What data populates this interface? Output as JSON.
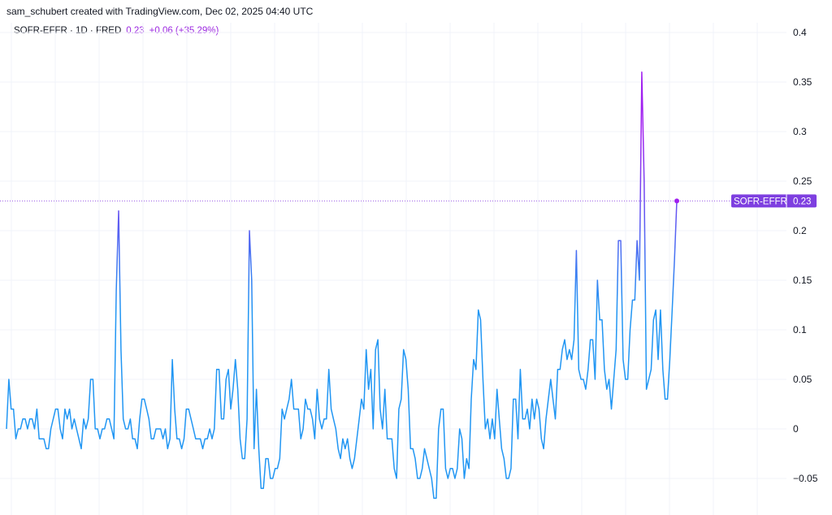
{
  "header": {
    "attribution": "sam_schubert created with TradingView.com, Dec 02, 2025 04:40 UTC"
  },
  "legend": {
    "symbol": "SOFR-EFFR · 1D · FRED",
    "last_value": "0.23",
    "change": "+0.06 (+35.29%)"
  },
  "price_tag": {
    "name": "SOFR-EFFR",
    "value": "0.23"
  },
  "colors": {
    "line_low": "#2196f3",
    "line_high": "#a020f0",
    "tag_bg": "#7e3fe0",
    "grid": "#f0f3fa",
    "dotted_line": "#9c5ce6"
  },
  "chart_data": {
    "type": "line",
    "title": "",
    "series": [
      {
        "name": "SOFR-EFFR",
        "values": [
          0,
          0.05,
          0.02,
          0.02,
          -0.01,
          0,
          0,
          0.01,
          0.01,
          0,
          0.01,
          0.01,
          0,
          0.02,
          -0.01,
          -0.01,
          -0.01,
          -0.02,
          -0.02,
          0,
          0.01,
          0.02,
          0.02,
          0,
          -0.01,
          0.02,
          0.01,
          0.02,
          0,
          0.01,
          0,
          -0.01,
          -0.02,
          0.01,
          0,
          0.01,
          0.05,
          0.05,
          0,
          0,
          -0.01,
          0,
          0,
          0.01,
          0.01,
          0,
          -0.01,
          0.14,
          0.22,
          0.08,
          0.01,
          0,
          0,
          0.01,
          -0.01,
          -0.01,
          -0.02,
          0.01,
          0.03,
          0.03,
          0.02,
          0.01,
          -0.01,
          -0.01,
          0,
          0,
          0,
          -0.01,
          0,
          -0.02,
          -0.01,
          0.07,
          0.02,
          -0.01,
          -0.01,
          -0.02,
          -0.01,
          0.02,
          0.02,
          0.01,
          0,
          -0.01,
          -0.01,
          -0.01,
          -0.02,
          -0.01,
          -0.01,
          0,
          -0.01,
          0,
          0.06,
          0.06,
          0.01,
          0.01,
          0.05,
          0.06,
          0.02,
          0.04,
          0.07,
          0.04,
          -0.01,
          -0.03,
          -0.03,
          0.01,
          0.2,
          0.15,
          -0.02,
          0.04,
          -0.02,
          -0.06,
          -0.06,
          -0.03,
          -0.03,
          -0.05,
          -0.05,
          -0.04,
          -0.04,
          -0.03,
          0.02,
          0.01,
          0.02,
          0.03,
          0.05,
          0.02,
          0.02,
          0.02,
          -0.01,
          0,
          0.03,
          0.02,
          0.02,
          0.01,
          -0.01,
          0.04,
          0.01,
          0,
          0.01,
          0.01,
          0.06,
          0.02,
          0.01,
          0,
          -0.02,
          -0.03,
          -0.01,
          -0.02,
          -0.01,
          -0.03,
          -0.04,
          -0.03,
          -0.01,
          0.01,
          0.03,
          0.02,
          0.08,
          0.04,
          0.06,
          0,
          0.08,
          0.09,
          0.02,
          0,
          0.04,
          -0.01,
          -0.01,
          -0.01,
          -0.04,
          -0.05,
          0.02,
          0.03,
          0.08,
          0.07,
          0.04,
          -0.02,
          -0.02,
          -0.03,
          -0.05,
          -0.05,
          -0.04,
          -0.02,
          -0.03,
          -0.04,
          -0.05,
          -0.07,
          -0.07,
          0,
          0.02,
          0.02,
          -0.04,
          -0.05,
          -0.04,
          -0.04,
          -0.05,
          -0.04,
          0,
          -0.01,
          -0.05,
          -0.03,
          -0.04,
          0.03,
          0.07,
          0.06,
          0.12,
          0.11,
          0.05,
          0,
          0.01,
          -0.01,
          0.01,
          -0.01,
          0.04,
          0.01,
          -0.02,
          -0.03,
          -0.05,
          -0.05,
          -0.04,
          0.03,
          0.03,
          -0.01,
          0.06,
          0.01,
          0.01,
          0.02,
          0,
          0.03,
          0.01,
          0.03,
          0.02,
          -0.01,
          -0.02,
          0.01,
          0.03,
          0.05,
          0.03,
          0.01,
          0.06,
          0.06,
          0.08,
          0.09,
          0.07,
          0.08,
          0.07,
          0.09,
          0.18,
          0.06,
          0.05,
          0.05,
          0.04,
          0.06,
          0.09,
          0.09,
          0.05,
          0.15,
          0.11,
          0.11,
          0.06,
          0.04,
          0.05,
          0.02,
          0.05,
          0.08,
          0.19,
          0.19,
          0.07,
          0.05,
          0.05,
          0.1,
          0.13,
          0.13,
          0.19,
          0.15,
          0.36,
          0.25,
          0.04,
          0.05,
          0.06,
          0.11,
          0.12,
          0.07,
          0.12,
          0.06,
          0.03,
          0.03,
          0.07,
          0.12,
          0.17,
          0.23
        ]
      }
    ],
    "ylim": [
      -0.085,
      0.41
    ],
    "yticks": [
      -0.05,
      0,
      0.05,
      0.1,
      0.15,
      0.2,
      0.25,
      0.3,
      0.35,
      0.4
    ],
    "ytick_labels": [
      "−0.05",
      "0",
      "0.05",
      "0.1",
      "0.15",
      "0.2",
      "0.25",
      "0.3",
      "0.35",
      "0.4"
    ],
    "grid": true,
    "legend_position": "top-left",
    "last_value_line": true
  }
}
